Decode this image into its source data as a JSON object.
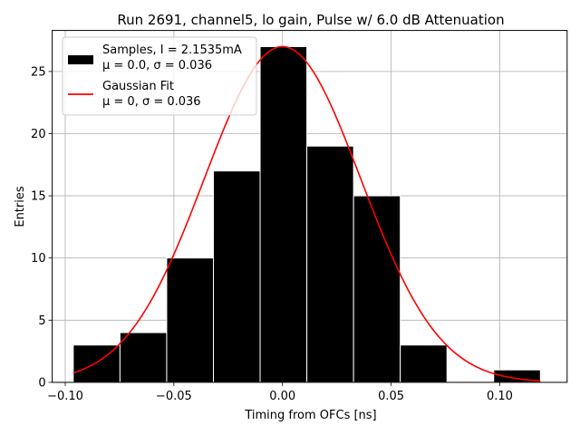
{
  "chart_data": {
    "type": "bar",
    "title": "Run 2691, channel5, lo gain, Pulse w/ 6.0 dB Attenuation",
    "xlabel": "Timing from OFCs [ns]",
    "ylabel": "Entries",
    "xlim": [
      -0.106,
      0.131
    ],
    "ylim": [
      0,
      28.3
    ],
    "grid": true,
    "x_ticks": [
      -0.1,
      -0.05,
      0.0,
      0.05,
      0.1
    ],
    "x_tick_labels": [
      "−0.10",
      "−0.05",
      "0.00",
      "0.05",
      "0.10"
    ],
    "y_ticks": [
      0,
      5,
      10,
      15,
      20,
      25
    ],
    "y_tick_labels": [
      "0",
      "5",
      "10",
      "15",
      "20",
      "25"
    ],
    "histogram": {
      "name": "Samples, I = 2.1535mA",
      "color": "#000000",
      "edge_color": "#ffffff",
      "bin_edges": [
        -0.0963,
        -0.0748,
        -0.0533,
        -0.0318,
        -0.0103,
        0.0112,
        0.0327,
        0.0542,
        0.0757,
        0.0972,
        0.1187
      ],
      "counts": [
        3,
        4,
        10,
        17,
        27,
        19,
        15,
        3,
        0,
        1
      ]
    },
    "fit": {
      "name": "Gaussian Fit",
      "color": "#ff0000",
      "amplitude": 27.0,
      "mu": 0.0,
      "sigma": 0.036,
      "x_range": [
        -0.0963,
        0.1187
      ]
    },
    "legend": {
      "position": "upper-left",
      "entries": [
        {
          "line1": "Samples, I = 2.1535mA",
          "line2": "μ = 0.0, σ = 0.036"
        },
        {
          "line1": "Gaussian Fit",
          "line2": "μ = 0, σ = 0.036"
        }
      ]
    }
  }
}
